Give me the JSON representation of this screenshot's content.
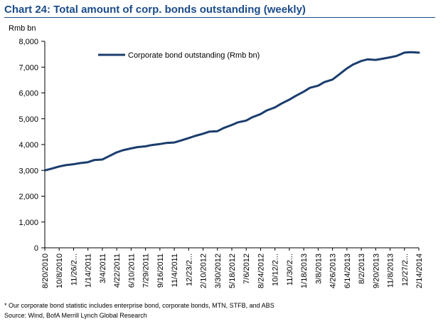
{
  "chart_data": {
    "type": "line",
    "title": "Chart 24: Total amount of corp. bonds outstanding (weekly)",
    "ylabel": "Rmb bn",
    "xlabel": "",
    "ylim": [
      0,
      8000
    ],
    "yticks": [
      0,
      1000,
      2000,
      3000,
      4000,
      5000,
      6000,
      7000,
      8000
    ],
    "ytick_labels": [
      "0",
      "1,000",
      "2,000",
      "3,000",
      "4,000",
      "5,000",
      "6,000",
      "7,000",
      "8,000"
    ],
    "xtick_labels": [
      "8/20/2010",
      "10/8/2010",
      "11/26/2...",
      "1/14/2011",
      "3/4/2011",
      "4/22/2011",
      "6/10/2011",
      "7/29/2011",
      "9/16/2011",
      "11/4/2011",
      "12/23/2...",
      "2/10/2012",
      "3/30/2012",
      "5/18/2012",
      "7/6/2012",
      "8/24/2012",
      "10/12/2...",
      "11/30/2...",
      "1/18/2013",
      "3/8/2013",
      "4/26/2013",
      "6/14/2013",
      "8/2/2013",
      "9/20/2013",
      "11/8/2013",
      "12/27/2...",
      "2/14/2014"
    ],
    "grid": false,
    "legend": "top-left inside",
    "series": [
      {
        "name": "Corporate bond outstanding (Rmb bn)",
        "color": "#1b3d6e",
        "x_index": [
          0,
          3,
          7,
          10,
          14,
          17,
          21,
          24,
          28,
          31,
          35,
          38,
          42,
          45,
          49,
          52,
          56,
          59,
          63,
          66,
          70,
          73,
          77,
          80,
          84,
          87,
          91,
          94,
          98,
          101,
          105,
          108,
          112,
          115,
          119,
          122,
          126,
          129,
          133,
          136,
          140,
          143,
          147,
          150,
          154,
          157,
          161,
          164,
          168,
          171,
          175,
          178,
          182
        ],
        "values": [
          3000,
          3060,
          3150,
          3200,
          3240,
          3280,
          3320,
          3400,
          3420,
          3540,
          3700,
          3780,
          3850,
          3900,
          3930,
          3980,
          4020,
          4060,
          4080,
          4150,
          4250,
          4330,
          4420,
          4500,
          4520,
          4640,
          4760,
          4860,
          4930,
          5060,
          5180,
          5320,
          5440,
          5580,
          5740,
          5880,
          6050,
          6200,
          6280,
          6420,
          6520,
          6700,
          6950,
          7100,
          7240,
          7300,
          7280,
          7320,
          7380,
          7430,
          7560,
          7580,
          7560
        ]
      }
    ]
  },
  "notes": {
    "footnote": "* Our corporate bond statistic includes enterprise bond, corporate bonds, MTN, STFB, and ABS",
    "source": "Source: Wind, BofA Merrill Lynch Global Research"
  }
}
